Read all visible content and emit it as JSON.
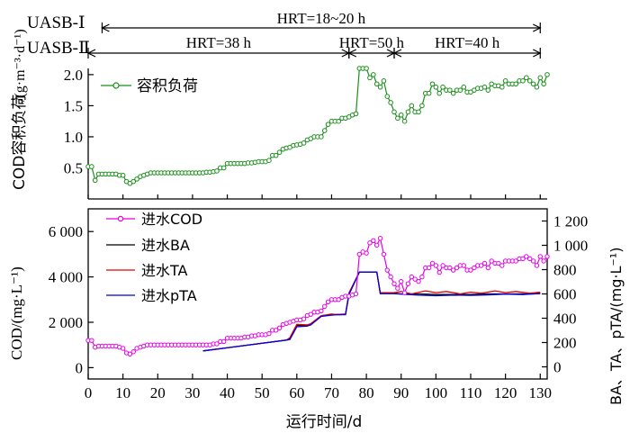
{
  "hrt_header": {
    "row1_label": "UASB-Ⅰ",
    "row2_label": "UASB-Ⅱ",
    "row1_segments": [
      {
        "text": "HRT=18~20 h",
        "start": 4,
        "end": 130
      }
    ],
    "row2_segments": [
      {
        "text": "HRT=38 h",
        "start": 0,
        "end": 75
      },
      {
        "text": "HRT=50 h",
        "start": 75,
        "end": 88
      },
      {
        "text": "HRT=40 h",
        "start": 88,
        "end": 130
      }
    ]
  },
  "chart_data": [
    {
      "type": "line",
      "panel": "top",
      "ylabel_main": "COD容积负荷",
      "ylabel_unit": "/(g·m⁻³·d⁻¹)",
      "ylim": [
        0,
        2.1
      ],
      "yticks": [
        0.5,
        1.0,
        1.5,
        2.0
      ],
      "ytick_labels": [
        "0.5",
        "1.0",
        "1.5",
        "2.0"
      ],
      "legend_position": "top-left",
      "colors": {
        "line": "#1a8f1a",
        "marker": "#1a8f1a"
      },
      "series": [
        {
          "name": "容积负荷",
          "x": [
            0,
            1,
            2,
            3,
            4,
            5,
            6,
            7,
            8,
            9,
            10,
            11,
            12,
            13,
            14,
            15,
            16,
            17,
            18,
            19,
            20,
            21,
            22,
            23,
            24,
            25,
            26,
            27,
            28,
            29,
            30,
            31,
            32,
            33,
            34,
            35,
            36,
            37,
            38,
            39,
            40,
            41,
            42,
            43,
            44,
            45,
            46,
            47,
            48,
            49,
            50,
            51,
            52,
            53,
            54,
            55,
            56,
            57,
            58,
            59,
            60,
            61,
            62,
            63,
            64,
            65,
            66,
            67,
            68,
            69,
            70,
            71,
            72,
            73,
            74,
            75,
            76,
            77,
            78,
            79,
            80,
            81,
            82,
            83,
            84,
            85,
            86,
            87,
            88,
            89,
            90,
            91,
            92,
            93,
            94,
            95,
            96,
            97,
            98,
            99,
            100,
            101,
            102,
            103,
            104,
            105,
            106,
            107,
            108,
            109,
            110,
            111,
            112,
            113,
            114,
            115,
            116,
            117,
            118,
            119,
            120,
            121,
            122,
            123,
            124,
            125,
            126,
            127,
            128,
            129,
            130,
            131,
            132
          ],
          "values": [
            0.52,
            0.52,
            0.3,
            0.4,
            0.4,
            0.4,
            0.4,
            0.4,
            0.4,
            0.38,
            0.38,
            0.28,
            0.25,
            0.28,
            0.32,
            0.36,
            0.38,
            0.4,
            0.42,
            0.42,
            0.42,
            0.42,
            0.42,
            0.42,
            0.42,
            0.42,
            0.42,
            0.42,
            0.42,
            0.42,
            0.42,
            0.42,
            0.42,
            0.42,
            0.43,
            0.43,
            0.44,
            0.45,
            0.5,
            0.5,
            0.57,
            0.57,
            0.57,
            0.57,
            0.57,
            0.57,
            0.58,
            0.58,
            0.59,
            0.6,
            0.6,
            0.6,
            0.62,
            0.7,
            0.7,
            0.75,
            0.8,
            0.82,
            0.83,
            0.86,
            0.87,
            0.88,
            0.9,
            0.95,
            0.97,
            1.0,
            1.0,
            1.0,
            1.1,
            1.2,
            1.25,
            1.25,
            1.25,
            1.3,
            1.3,
            1.32,
            1.35,
            1.37,
            2.1,
            2.1,
            2.1,
            1.95,
            2.0,
            1.85,
            1.8,
            1.9,
            1.65,
            1.55,
            1.4,
            1.3,
            1.35,
            1.25,
            1.4,
            1.5,
            1.4,
            1.4,
            1.5,
            1.7,
            1.7,
            1.85,
            1.8,
            1.7,
            1.8,
            1.75,
            1.75,
            1.7,
            1.75,
            1.75,
            1.8,
            1.72,
            1.72,
            1.75,
            1.78,
            1.78,
            1.8,
            1.75,
            1.85,
            1.82,
            1.82,
            1.8,
            1.9,
            1.85,
            1.85,
            1.85,
            1.9,
            1.9,
            1.95,
            1.9,
            1.85,
            1.8,
            1.95,
            1.85,
            2.0
          ]
        }
      ]
    },
    {
      "type": "line",
      "panel": "bottom",
      "xlabel": "运行时间/d",
      "xlim": [
        0,
        132
      ],
      "xticks": [
        0,
        10,
        20,
        30,
        40,
        50,
        60,
        70,
        80,
        90,
        100,
        110,
        120,
        130
      ],
      "ylabel_left": "COD/(mg·L⁻¹)",
      "ylim_left": [
        -500,
        7000
      ],
      "yticks_left": [
        0,
        2000,
        4000,
        6000
      ],
      "ytick_labels_left": [
        "0",
        "2 000",
        "4 000",
        "6 000"
      ],
      "ylabel_right": "BA、TA、pTA/(mg·L⁻¹)",
      "ylim_right": [
        -100,
        1300
      ],
      "yticks_right": [
        0,
        200,
        400,
        600,
        800,
        1000,
        1200
      ],
      "ytick_labels_right": [
        "0",
        "200",
        "400",
        "600",
        "800",
        "1 000",
        "1 200"
      ],
      "legend_position": "top-left",
      "colors": {
        "cod": "#e600e6",
        "ba": "#000000",
        "ta": "#e00000",
        "pta": "#0000e0"
      },
      "series": [
        {
          "name": "进水COD",
          "axis": "left",
          "x": [
            0,
            1,
            2,
            3,
            4,
            5,
            6,
            7,
            8,
            9,
            10,
            11,
            12,
            13,
            14,
            15,
            16,
            17,
            18,
            19,
            20,
            21,
            22,
            23,
            24,
            25,
            26,
            27,
            28,
            29,
            30,
            31,
            32,
            33,
            34,
            35,
            36,
            37,
            38,
            39,
            40,
            41,
            42,
            43,
            44,
            45,
            46,
            47,
            48,
            49,
            50,
            51,
            52,
            53,
            54,
            55,
            56,
            57,
            58,
            59,
            60,
            61,
            62,
            63,
            64,
            65,
            66,
            67,
            68,
            69,
            70,
            71,
            72,
            73,
            74,
            75,
            76,
            77,
            78,
            79,
            80,
            81,
            82,
            83,
            84,
            85,
            86,
            87,
            88,
            89,
            90,
            91,
            92,
            93,
            94,
            95,
            96,
            97,
            98,
            99,
            100,
            101,
            102,
            103,
            104,
            105,
            106,
            107,
            108,
            109,
            110,
            111,
            112,
            113,
            114,
            115,
            116,
            117,
            118,
            119,
            120,
            121,
            122,
            123,
            124,
            125,
            126,
            127,
            128,
            129,
            130,
            131,
            132
          ],
          "values": [
            1200,
            1200,
            900,
            950,
            950,
            950,
            950,
            950,
            950,
            900,
            850,
            650,
            600,
            700,
            850,
            900,
            950,
            1000,
            1000,
            1000,
            1000,
            1000,
            1000,
            1000,
            1000,
            1000,
            1000,
            1000,
            1000,
            1000,
            1000,
            1000,
            1000,
            1000,
            1000,
            1000,
            1050,
            1050,
            1150,
            1150,
            1300,
            1300,
            1300,
            1300,
            1300,
            1350,
            1350,
            1400,
            1400,
            1450,
            1450,
            1450,
            1500,
            1650,
            1650,
            1750,
            1900,
            1950,
            2000,
            2050,
            2100,
            2100,
            2150,
            2300,
            2350,
            2450,
            2450,
            2500,
            2700,
            2900,
            3000,
            3000,
            3000,
            3100,
            3150,
            3150,
            3200,
            3250,
            5000,
            5100,
            5050,
            5500,
            5600,
            5400,
            5700,
            5000,
            4300,
            4000,
            3700,
            3500,
            3800,
            3300,
            3700,
            4000,
            3900,
            3800,
            4000,
            4400,
            4400,
            4600,
            4500,
            4200,
            4500,
            4400,
            4400,
            4300,
            4400,
            4500,
            4500,
            4300,
            4300,
            4400,
            4500,
            4500,
            4600,
            4400,
            4700,
            4600,
            4600,
            4500,
            4700,
            4700,
            4700,
            4700,
            4800,
            4800,
            4900,
            4800,
            4700,
            4500,
            4900,
            4700,
            4900
          ]
        },
        {
          "name": "进水BA",
          "axis": "right",
          "x": [
            33,
            57,
            58,
            60,
            63,
            64,
            67,
            70,
            71,
            74,
            75,
            78,
            79,
            83,
            84,
            88,
            90,
            95,
            100,
            105,
            110,
            115,
            120,
            125,
            128,
            130
          ],
          "values": [
            131,
            220,
            230,
            340,
            340,
            350,
            420,
            430,
            430,
            430,
            600,
            780,
            780,
            780,
            605,
            605,
            600,
            600,
            595,
            595,
            595,
            600,
            600,
            600,
            600,
            605
          ]
        },
        {
          "name": "进水TA",
          "axis": "right",
          "x": [
            33,
            57,
            58,
            60,
            63,
            64,
            67,
            70,
            71,
            74,
            75,
            78,
            79,
            83,
            84,
            88,
            90,
            93,
            97,
            100,
            103,
            107,
            110,
            113,
            117,
            120,
            123,
            127,
            130
          ],
          "values": [
            131,
            220,
            240,
            350,
            345,
            355,
            420,
            435,
            430,
            435,
            610,
            780,
            780,
            780,
            610,
            610,
            620,
            600,
            625,
            610,
            620,
            600,
            615,
            605,
            625,
            610,
            620,
            605,
            615
          ]
        },
        {
          "name": "进水pTA",
          "axis": "right",
          "x": [
            33,
            57,
            58,
            60,
            63,
            64,
            67,
            70,
            71,
            74,
            75,
            78,
            79,
            83,
            84,
            88,
            90,
            95,
            100,
            105,
            110,
            115,
            120,
            125,
            128,
            130
          ],
          "values": [
            131,
            220,
            225,
            330,
            335,
            345,
            415,
            425,
            428,
            430,
            595,
            780,
            780,
            780,
            602,
            602,
            598,
            590,
            585,
            590,
            588,
            592,
            598,
            595,
            600,
            602
          ]
        }
      ]
    }
  ]
}
